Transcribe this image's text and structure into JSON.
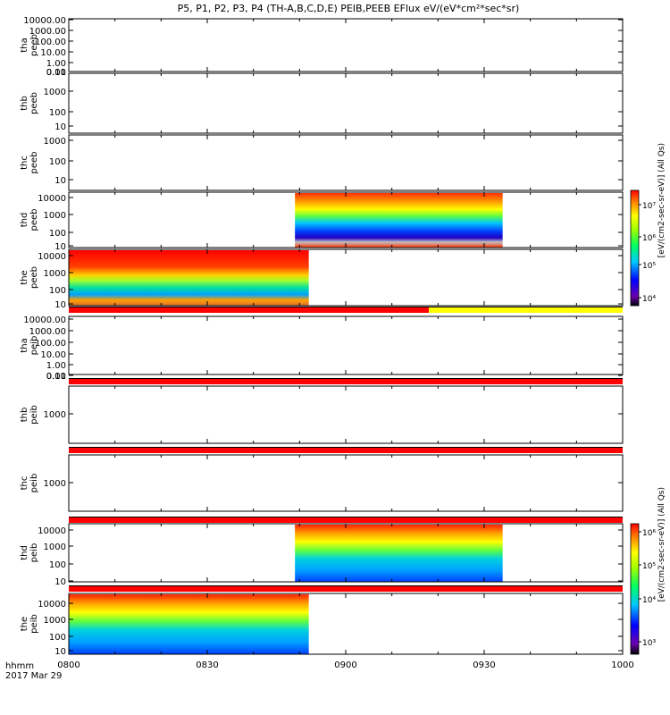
{
  "title": "P5, P1, P2, P3, P4 (TH-A,B,C,D,E) PEIB,PEEB EFlux eV/(eV*cm²*sec*sr)",
  "colorbar_top_title": "[eV/(cm2-sec-sr-eV)] (All Qs)",
  "colorbar_bottom_title": "[eV/(cm2-sec-sr-eV)] (All Qs)",
  "time_label_line1": "hhmm",
  "time_label_line2": "2017 Mar 29",
  "colors": {
    "bar_red": "#ff0000",
    "bar_yellow": "#ffff00",
    "bar_black": "#000000"
  },
  "chart_data": {
    "type": "heatmap",
    "x_ticks": [
      "0800",
      "0830",
      "0900",
      "0930",
      "1000"
    ],
    "x_range_minutes": [
      0,
      120
    ],
    "panels": [
      {
        "label_line1": "tha",
        "label_line2": "peeb",
        "y_ticks": [
          "10000.00",
          "1000.00",
          "100.00",
          "10.00",
          "1.00",
          "0.10",
          "0.01"
        ],
        "data_intervals": []
      },
      {
        "label_line1": "thb",
        "label_line2": "peeb",
        "y_ticks": [
          "1000",
          "100",
          "10"
        ],
        "data_intervals": []
      },
      {
        "label_line1": "thc",
        "label_line2": "peeb",
        "y_ticks": [
          "1000",
          "100",
          "10"
        ],
        "data_intervals": []
      },
      {
        "label_line1": "thd",
        "label_line2": "peeb",
        "y_ticks": [
          "10000",
          "1000",
          "100",
          "10"
        ],
        "data_intervals": [
          [
            49,
            94
          ]
        ],
        "colorbar_ticks": [
          "10⁷",
          "10⁶",
          "10⁵",
          "10⁴"
        ]
      },
      {
        "label_line1": "the",
        "label_line2": "peeb",
        "y_ticks": [
          "10000",
          "1000",
          "100",
          "10"
        ],
        "data_intervals": [
          [
            0,
            52
          ]
        ],
        "colorbar_ticks": [
          "10⁷",
          "10⁶",
          "10⁵",
          "10⁴"
        ]
      },
      {
        "label_line1": "tha",
        "label_line2": "peib",
        "y_ticks": [
          "10000.00",
          "1000.00",
          "100.00",
          "10.00",
          "1.00",
          "0.10",
          "0.01"
        ],
        "data_intervals": []
      },
      {
        "label_line1": "thb",
        "label_line2": "peib",
        "y_ticks": [
          "1000"
        ],
        "data_intervals": []
      },
      {
        "label_line1": "thc",
        "label_line2": "peib",
        "y_ticks": [
          "1000"
        ],
        "data_intervals": []
      },
      {
        "label_line1": "thd",
        "label_line2": "peib",
        "y_ticks": [
          "10000",
          "1000",
          "100",
          "10"
        ],
        "data_intervals": [
          [
            49,
            94
          ]
        ],
        "colorbar_ticks": [
          "10⁶",
          "10⁵",
          "10⁴",
          "10³"
        ]
      },
      {
        "label_line1": "the",
        "label_line2": "peib",
        "y_ticks": [
          "10000",
          "1000",
          "100",
          "10"
        ],
        "data_intervals": [
          [
            0,
            52
          ]
        ],
        "colorbar_ticks": [
          "10⁶",
          "10⁵",
          "10⁴",
          "10³"
        ]
      }
    ]
  }
}
